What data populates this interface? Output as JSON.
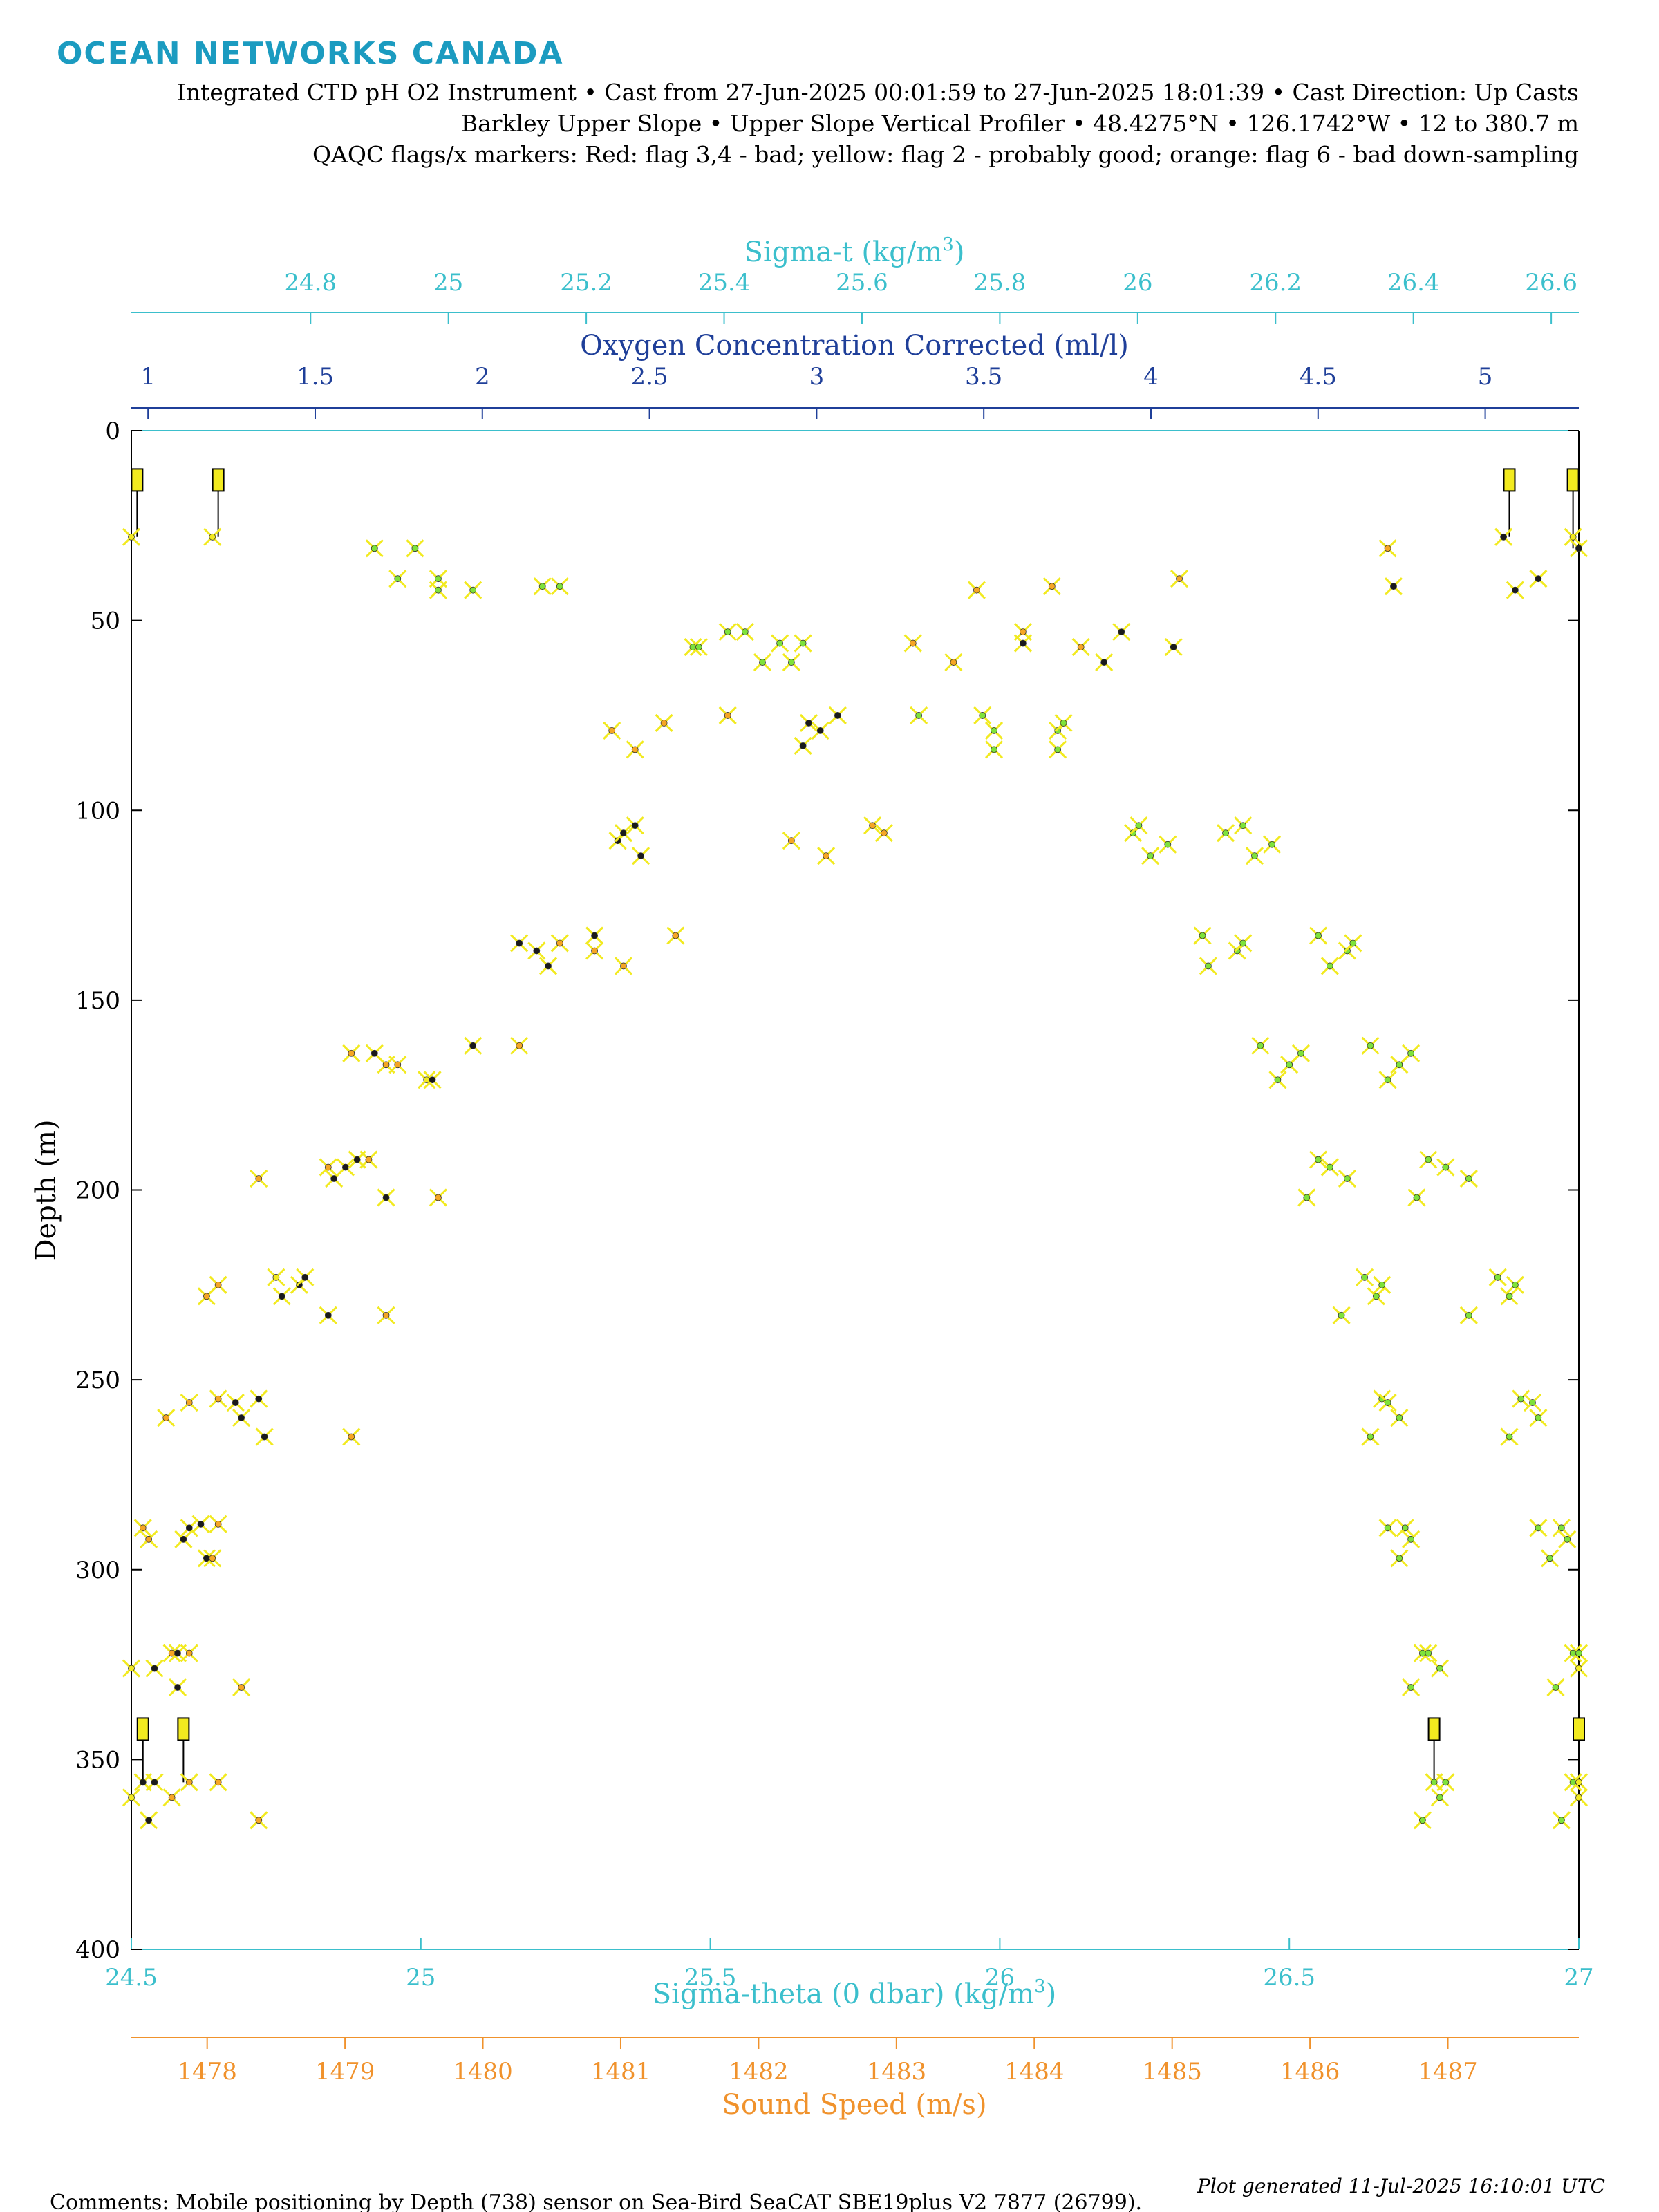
{
  "brand": {
    "logo_text": "OCEAN NETWORKS CANADA",
    "color": "#1b9bc0"
  },
  "header": {
    "line1": "Integrated CTD pH O2 Instrument • Cast from 27-Jun-2025 00:01:59 to 27-Jun-2025 18:01:39 • Cast Direction: Up Casts",
    "line2": "Barkley Upper Slope • Upper Slope Vertical Profiler • 48.4275°N • 126.1742°W • 12 to 380.7 m",
    "line3": "QAQC flags/x markers: Red: flag 3,4 - bad; yellow: flag 2 - probably good; orange: flag 6 - bad down-sampling"
  },
  "footer": {
    "comments": "Comments: Mobile positioning by Depth (738) sensor on Sea-Bird SeaCAT SBE19plus V2 7877 (26799).",
    "generated": "Plot generated 11-Jul-2025 16:10:01 UTC"
  },
  "chart_data": {
    "type": "scatter",
    "colors": {
      "sigma": "#3bbfcc",
      "oxygen": "#1f3f99",
      "sound": "#f0922c",
      "flag_good": "#f2ea1f",
      "green_marker": "#7ee23a",
      "orange_marker": "#f5a623",
      "dark_marker": "#1a1a1a"
    },
    "y_axis": {
      "label": "Depth (m)",
      "range": [
        0,
        400
      ],
      "reversed": true,
      "ticks": [
        0,
        50,
        100,
        150,
        200,
        250,
        300,
        350,
        400
      ]
    },
    "axes": {
      "sigma_t": {
        "label": "Sigma-t (kg/m",
        "label_sup": "3",
        "label_end": ")",
        "position": "top-outer",
        "range": [
          24.54,
          26.64
        ],
        "ticks": [
          24.8,
          25,
          25.2,
          25.4,
          25.6,
          25.8,
          26,
          26.2,
          26.4,
          26.6
        ],
        "tick_labels": [
          "24.8",
          "25",
          "25.2",
          "25.4",
          "25.6",
          "25.8",
          "26",
          "26.2",
          "26.4",
          "26.6"
        ]
      },
      "oxygen": {
        "label": "Oxygen Concentration Corrected (ml/l)",
        "position": "top-inner",
        "range": [
          0.95,
          5.28
        ],
        "ticks": [
          1,
          1.5,
          2,
          2.5,
          3,
          3.5,
          4,
          4.5,
          5
        ],
        "tick_labels": [
          "1",
          "1.5",
          "2",
          "2.5",
          "3",
          "3.5",
          "4",
          "4.5",
          "5"
        ]
      },
      "sigma_theta": {
        "label": "Sigma-theta (0 dbar) (kg/m",
        "label_sup": "3",
        "label_end": ")",
        "position": "bottom-inner",
        "range": [
          24.5,
          27
        ],
        "ticks": [
          24.5,
          25,
          25.5,
          26,
          26.5,
          27
        ],
        "tick_labels": [
          "24.5",
          "25",
          "25.5",
          "26",
          "26.5",
          "27"
        ]
      },
      "sound_speed": {
        "label": "Sound Speed (m/s)",
        "position": "bottom-outer",
        "range": [
          1477.45,
          1487.95
        ],
        "ticks": [
          1478,
          1479,
          1480,
          1481,
          1482,
          1483,
          1484,
          1485,
          1486,
          1487
        ],
        "tick_labels": [
          "1478",
          "1479",
          "1480",
          "1481",
          "1482",
          "1483",
          "1484",
          "1485",
          "1486",
          "1487"
        ]
      }
    },
    "flag_markers": [
      {
        "x": 24.51,
        "depth": 13,
        "anchor": 28
      },
      {
        "x": 24.65,
        "depth": 13,
        "anchor": 28
      },
      {
        "x": 26.88,
        "depth": 13,
        "anchor": 28
      },
      {
        "x": 26.99,
        "depth": 13,
        "anchor": 31
      },
      {
        "x": 24.52,
        "depth": 342,
        "anchor": 356
      },
      {
        "x": 24.59,
        "depth": 342,
        "anchor": 356
      },
      {
        "x": 26.75,
        "depth": 342,
        "anchor": 356
      },
      {
        "x": 27.0,
        "depth": 342,
        "anchor": 356
      }
    ],
    "series": [
      {
        "name": "",
        "marker": "x",
        "points": [
          [
            24.5,
            28,
            "y"
          ],
          [
            24.64,
            28,
            "y"
          ],
          [
            24.92,
            31,
            "g"
          ],
          [
            24.99,
            31,
            "g"
          ],
          [
            24.96,
            39,
            "g"
          ],
          [
            25.03,
            39,
            "g"
          ],
          [
            25.03,
            42,
            "g"
          ],
          [
            25.09,
            42,
            "g"
          ],
          [
            25.21,
            41,
            "g"
          ],
          [
            25.24,
            41,
            "g"
          ],
          [
            25.96,
            42,
            "o"
          ],
          [
            26.09,
            41,
            "o"
          ],
          [
            26.31,
            39,
            "o"
          ],
          [
            26.67,
            31,
            "o"
          ],
          [
            26.68,
            41,
            "d"
          ],
          [
            26.89,
            42,
            "d"
          ],
          [
            26.93,
            39,
            "d"
          ],
          [
            26.99,
            28,
            "y"
          ],
          [
            27.0,
            31,
            "d"
          ],
          [
            26.87,
            28,
            "d"
          ],
          [
            25.47,
            57,
            "g"
          ],
          [
            25.48,
            57,
            "g"
          ],
          [
            25.53,
            53,
            "g"
          ],
          [
            25.56,
            53,
            "g"
          ],
          [
            25.62,
            56,
            "g"
          ],
          [
            25.59,
            61,
            "g"
          ],
          [
            25.64,
            61,
            "g"
          ],
          [
            25.66,
            56,
            "g"
          ],
          [
            25.85,
            56,
            "o"
          ],
          [
            25.92,
            61,
            "o"
          ],
          [
            26.04,
            53,
            "o"
          ],
          [
            26.04,
            56,
            "d"
          ],
          [
            26.14,
            57,
            "o"
          ],
          [
            26.18,
            61,
            "d"
          ],
          [
            26.21,
            53,
            "d"
          ],
          [
            26.3,
            57,
            "d"
          ],
          [
            25.33,
            79,
            "o"
          ],
          [
            25.37,
            84,
            "o"
          ],
          [
            25.42,
            77,
            "o"
          ],
          [
            25.53,
            75,
            "o"
          ],
          [
            25.66,
            83,
            "d"
          ],
          [
            25.67,
            77,
            "d"
          ],
          [
            25.69,
            79,
            "d"
          ],
          [
            25.72,
            75,
            "d"
          ],
          [
            25.86,
            75,
            "g"
          ],
          [
            25.97,
            75,
            "g"
          ],
          [
            25.99,
            79,
            "g"
          ],
          [
            25.99,
            84,
            "g"
          ],
          [
            26.1,
            79,
            "g"
          ],
          [
            26.1,
            84,
            "g"
          ],
          [
            26.11,
            77,
            "g"
          ],
          [
            25.34,
            108,
            "d"
          ],
          [
            25.35,
            106,
            "d"
          ],
          [
            25.37,
            104,
            "d"
          ],
          [
            25.38,
            112,
            "d"
          ],
          [
            25.64,
            108,
            "o"
          ],
          [
            25.7,
            112,
            "o"
          ],
          [
            25.78,
            104,
            "o"
          ],
          [
            25.8,
            106,
            "o"
          ],
          [
            26.23,
            106,
            "g"
          ],
          [
            26.24,
            104,
            "g"
          ],
          [
            26.26,
            112,
            "g"
          ],
          [
            26.29,
            109,
            "g"
          ],
          [
            26.39,
            106,
            "g"
          ],
          [
            26.42,
            104,
            "g"
          ],
          [
            26.44,
            112,
            "g"
          ],
          [
            26.47,
            109,
            "g"
          ],
          [
            25.17,
            135,
            "d"
          ],
          [
            25.2,
            137,
            "d"
          ],
          [
            25.22,
            141,
            "d"
          ],
          [
            25.24,
            135,
            "o"
          ],
          [
            25.3,
            133,
            "d"
          ],
          [
            25.3,
            137,
            "o"
          ],
          [
            25.35,
            141,
            "o"
          ],
          [
            25.44,
            133,
            "o"
          ],
          [
            26.35,
            133,
            "g"
          ],
          [
            26.36,
            141,
            "g"
          ],
          [
            26.41,
            137,
            "g"
          ],
          [
            26.42,
            135,
            "g"
          ],
          [
            26.55,
            133,
            "g"
          ],
          [
            26.57,
            141,
            "g"
          ],
          [
            26.6,
            137,
            "g"
          ],
          [
            26.61,
            135,
            "g"
          ],
          [
            25.01,
            171,
            "y"
          ],
          [
            25.02,
            171,
            "d"
          ],
          [
            25.09,
            162,
            "d"
          ],
          [
            25.17,
            162,
            "o"
          ],
          [
            24.88,
            164,
            "o"
          ],
          [
            24.92,
            164,
            "d"
          ],
          [
            24.94,
            167,
            "o"
          ],
          [
            24.96,
            167,
            "o"
          ],
          [
            26.45,
            162,
            "g"
          ],
          [
            26.48,
            171,
            "g"
          ],
          [
            26.5,
            167,
            "g"
          ],
          [
            26.52,
            164,
            "g"
          ],
          [
            26.64,
            162,
            "g"
          ],
          [
            26.67,
            171,
            "g"
          ],
          [
            26.69,
            167,
            "g"
          ],
          [
            26.71,
            164,
            "g"
          ],
          [
            24.72,
            197,
            "o"
          ],
          [
            24.84,
            194,
            "o"
          ],
          [
            24.85,
            197,
            "d"
          ],
          [
            24.87,
            194,
            "d"
          ],
          [
            24.89,
            192,
            "d"
          ],
          [
            24.91,
            192,
            "o"
          ],
          [
            24.94,
            202,
            "d"
          ],
          [
            25.03,
            202,
            "o"
          ],
          [
            26.53,
            202,
            "g"
          ],
          [
            26.55,
            192,
            "g"
          ],
          [
            26.57,
            194,
            "g"
          ],
          [
            26.6,
            197,
            "g"
          ],
          [
            26.72,
            202,
            "g"
          ],
          [
            26.74,
            192,
            "g"
          ],
          [
            26.77,
            194,
            "g"
          ],
          [
            26.81,
            197,
            "g"
          ],
          [
            24.63,
            228,
            "o"
          ],
          [
            24.65,
            225,
            "o"
          ],
          [
            24.75,
            223,
            "y"
          ],
          [
            24.76,
            228,
            "d"
          ],
          [
            24.79,
            225,
            "d"
          ],
          [
            24.8,
            223,
            "d"
          ],
          [
            24.84,
            233,
            "d"
          ],
          [
            24.94,
            233,
            "o"
          ],
          [
            26.59,
            233,
            "g"
          ],
          [
            26.63,
            223,
            "g"
          ],
          [
            26.65,
            228,
            "g"
          ],
          [
            26.66,
            225,
            "g"
          ],
          [
            26.81,
            233,
            "g"
          ],
          [
            26.86,
            223,
            "g"
          ],
          [
            26.88,
            228,
            "g"
          ],
          [
            26.89,
            225,
            "g"
          ],
          [
            24.56,
            260,
            "o"
          ],
          [
            24.6,
            256,
            "o"
          ],
          [
            24.65,
            255,
            "o"
          ],
          [
            24.68,
            256,
            "d"
          ],
          [
            24.69,
            260,
            "d"
          ],
          [
            24.72,
            255,
            "d"
          ],
          [
            24.73,
            265,
            "d"
          ],
          [
            24.88,
            265,
            "o"
          ],
          [
            26.64,
            265,
            "g"
          ],
          [
            26.66,
            255,
            "g"
          ],
          [
            26.67,
            256,
            "g"
          ],
          [
            26.69,
            260,
            "g"
          ],
          [
            26.88,
            265,
            "g"
          ],
          [
            26.9,
            255,
            "g"
          ],
          [
            26.92,
            256,
            "g"
          ],
          [
            26.93,
            260,
            "g"
          ],
          [
            24.52,
            289,
            "o"
          ],
          [
            24.53,
            292,
            "o"
          ],
          [
            24.59,
            292,
            "d"
          ],
          [
            24.6,
            289,
            "d"
          ],
          [
            24.62,
            288,
            "d"
          ],
          [
            24.63,
            297,
            "d"
          ],
          [
            24.64,
            297,
            "o"
          ],
          [
            24.65,
            288,
            "o"
          ],
          [
            26.67,
            289,
            "g"
          ],
          [
            26.69,
            297,
            "g"
          ],
          [
            26.7,
            289,
            "g"
          ],
          [
            26.71,
            292,
            "g"
          ],
          [
            26.93,
            289,
            "g"
          ],
          [
            26.95,
            297,
            "g"
          ],
          [
            26.97,
            289,
            "g"
          ],
          [
            26.98,
            292,
            "g"
          ],
          [
            24.5,
            326,
            "y"
          ],
          [
            24.54,
            326,
            "d"
          ],
          [
            24.57,
            322,
            "o"
          ],
          [
            24.58,
            322,
            "d"
          ],
          [
            24.6,
            322,
            "o"
          ],
          [
            24.58,
            331,
            "d"
          ],
          [
            24.69,
            331,
            "o"
          ],
          [
            26.71,
            331,
            "g"
          ],
          [
            26.73,
            322,
            "g"
          ],
          [
            26.74,
            322,
            "g"
          ],
          [
            26.76,
            326,
            "g"
          ],
          [
            26.96,
            331,
            "g"
          ],
          [
            26.99,
            322,
            "g"
          ],
          [
            27.0,
            322,
            "g"
          ],
          [
            27.0,
            326,
            "y"
          ],
          [
            24.5,
            360,
            "y"
          ],
          [
            24.52,
            356,
            "d"
          ],
          [
            24.54,
            356,
            "d"
          ],
          [
            24.57,
            360,
            "o"
          ],
          [
            24.6,
            356,
            "o"
          ],
          [
            24.53,
            366,
            "d"
          ],
          [
            24.65,
            356,
            "o"
          ],
          [
            24.72,
            366,
            "o"
          ],
          [
            26.73,
            366,
            "g"
          ],
          [
            26.75,
            356,
            "g"
          ],
          [
            26.76,
            360,
            "g"
          ],
          [
            26.77,
            356,
            "g"
          ],
          [
            26.97,
            366,
            "g"
          ],
          [
            26.99,
            356,
            "g"
          ],
          [
            27.0,
            360,
            "y"
          ],
          [
            27.0,
            356,
            "y"
          ]
        ]
      }
    ]
  }
}
